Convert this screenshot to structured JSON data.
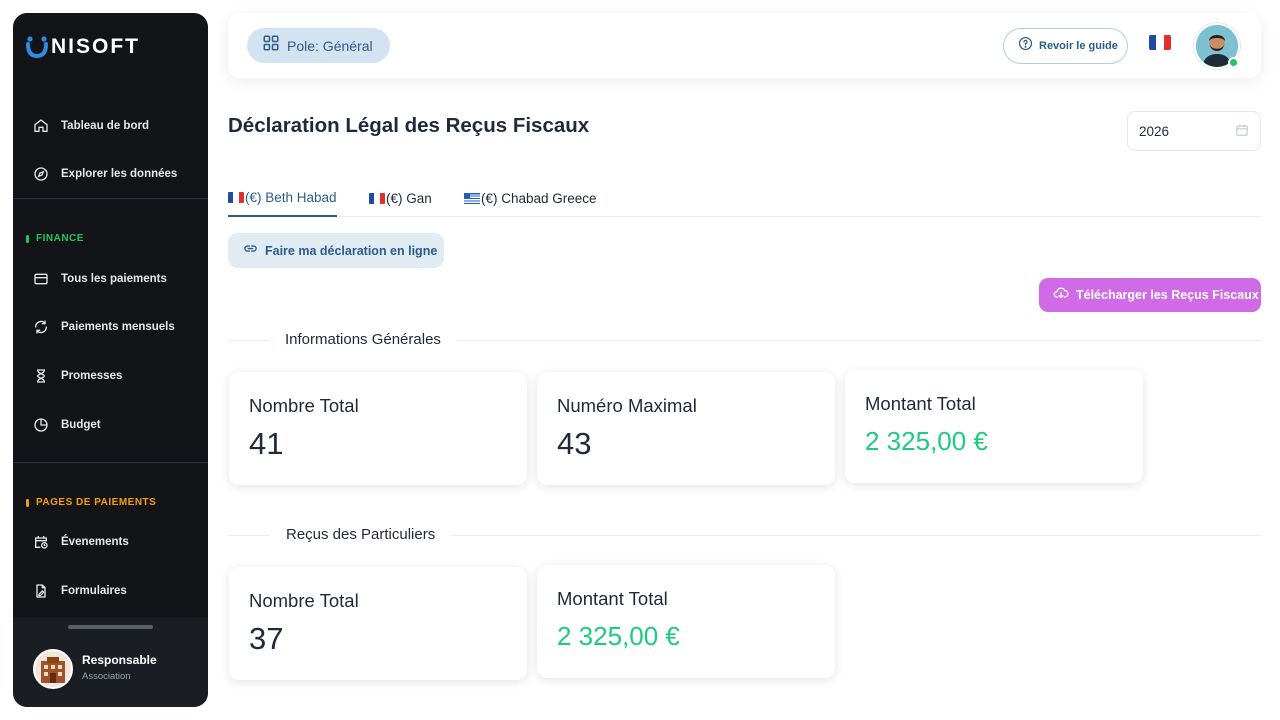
{
  "brand": {
    "name": "NISOFT",
    "letter": "U"
  },
  "sidebar": {
    "top_items": [
      {
        "label": "Tableau de bord",
        "icon": "home-icon"
      },
      {
        "label": "Explorer les données",
        "icon": "compass-icon"
      }
    ],
    "finance": {
      "title": "FINANCE",
      "color": "#22c55e",
      "items": [
        {
          "label": "Tous les paiements",
          "icon": "credit-card-icon"
        },
        {
          "label": "Paiements mensuels",
          "icon": "refresh-icon"
        },
        {
          "label": "Promesses",
          "icon": "hourglass-icon"
        },
        {
          "label": "Budget",
          "icon": "pie-chart-icon"
        }
      ]
    },
    "pages": {
      "title": "PAGES DE PAIEMENTS",
      "color": "#f59e0b",
      "items": [
        {
          "label": "Évenements",
          "icon": "calendar-clock-icon"
        },
        {
          "label": "Formulaires",
          "icon": "file-edit-icon"
        }
      ]
    },
    "profile": {
      "name": "Responsable",
      "role": "Association"
    }
  },
  "header": {
    "pole_label": "Pole: Général",
    "guide_label": "Revoir le guide",
    "language": "fr"
  },
  "main": {
    "title": "Déclaration Légal des Reçus Fiscaux",
    "year": "2026",
    "tabs": [
      {
        "label": "(€) Beth Habad",
        "flag": "fr",
        "active": true
      },
      {
        "label": "(€) Gan",
        "flag": "fr",
        "active": false
      },
      {
        "label": "(€) Chabad Greece",
        "flag": "gr",
        "active": false
      }
    ],
    "online_button": "Faire ma déclaration en ligne",
    "download_button": "Télécharger les Reçus Fiscaux",
    "general": {
      "title": "Informations Générales",
      "cards": [
        {
          "label": "Nombre Total",
          "value": "41"
        },
        {
          "label": "Numéro Maximal",
          "value": "43"
        },
        {
          "label": "Montant Total",
          "value": "2 325,00 €"
        }
      ]
    },
    "individuals": {
      "title": "Reçus des Particuliers",
      "cards": [
        {
          "label": "Nombre Total",
          "value": "37"
        },
        {
          "label": "Montant Total",
          "value": "2 325,00 €"
        }
      ]
    }
  },
  "colors": {
    "accent": "#2b5d8a",
    "money": "#1ecb7e",
    "download": "#d06ae6",
    "sidebar_bg": "#121418"
  }
}
